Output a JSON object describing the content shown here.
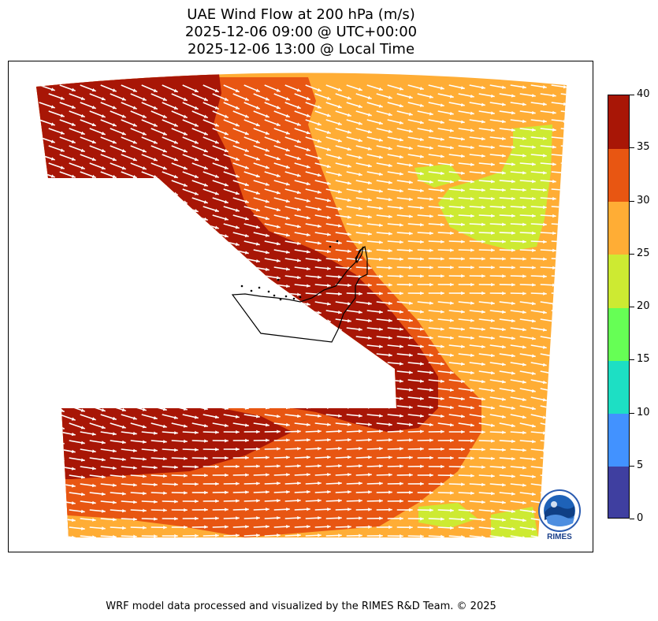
{
  "title": {
    "line1": "UAE Wind Flow at 200 hPa (m/s)",
    "line2": "2025-12-06 09:00 @ UTC+00:00",
    "line3": "2025-12-06 13:00 @ Local Time"
  },
  "colorbar": {
    "ticks": [
      "0",
      "5",
      "10",
      "15",
      "20",
      "25",
      "30",
      "35",
      "40"
    ],
    "bins": [
      {
        "min": 0,
        "max": 5,
        "color": "#3f3fa0"
      },
      {
        "min": 5,
        "max": 10,
        "color": "#4292ff"
      },
      {
        "min": 10,
        "max": 15,
        "color": "#1ddfc4"
      },
      {
        "min": 15,
        "max": 20,
        "color": "#66ff55"
      },
      {
        "min": 20,
        "max": 25,
        "color": "#cdea32"
      },
      {
        "min": 25,
        "max": 30,
        "color": "#ffad35"
      },
      {
        "min": 30,
        "max": 35,
        "color": "#e85612"
      },
      {
        "min": 35,
        "max": 40,
        "color": "#a81606"
      }
    ]
  },
  "map": {
    "region": "UAE",
    "wind_direction": "westerly",
    "vector_color": "#ffffff",
    "speed_regions": [
      {
        "area": "northwest",
        "speed_bin": "35-40"
      },
      {
        "area": "central band",
        "speed_bin": "30-35"
      },
      {
        "area": "northeast",
        "speed_bin": "25-30"
      },
      {
        "area": "east",
        "speed_bin": "20-25"
      },
      {
        "area": "southwest",
        "speed_bin": "35-40"
      },
      {
        "area": "southeast corner",
        "speed_bin": "20-25"
      }
    ]
  },
  "logo": {
    "text": "RIMES",
    "name": "rimes-logo"
  },
  "footer": {
    "credit": "WRF model data processed and visualized by the RIMES R&D Team. © 2025"
  }
}
